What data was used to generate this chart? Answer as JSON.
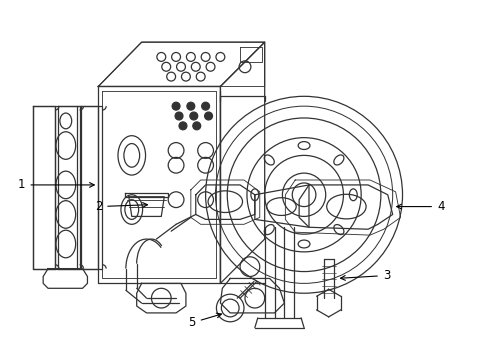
{
  "bg_color": "#ffffff",
  "line_color": "#333333",
  "label_color": "#000000",
  "figsize": [
    4.89,
    3.6
  ],
  "dpi": 100,
  "lw": 0.9
}
